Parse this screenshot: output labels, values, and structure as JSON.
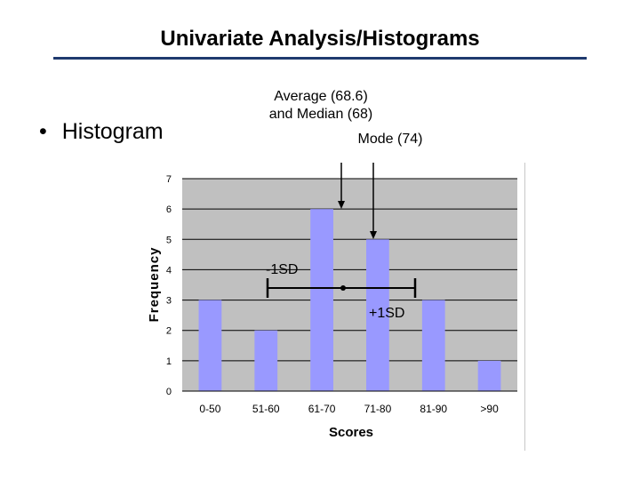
{
  "slide": {
    "title": "Univariate Analysis/Histograms",
    "bullet_symbol": "•",
    "bullet_text": "Histogram",
    "accent_color": "#1f3a6e"
  },
  "annotations": {
    "average_median_line1": "Average (68.6)",
    "average_median_line2": "and Median (68)",
    "mode": "Mode (74)",
    "minus_sd": "-1SD",
    "plus_sd": "+1SD"
  },
  "chart_data": {
    "type": "bar",
    "categories": [
      "0-50",
      "51-60",
      "61-70",
      "71-80",
      "81-90",
      ">90"
    ],
    "values": [
      3,
      2,
      6,
      5,
      3,
      1
    ],
    "xlabel": "Scores",
    "ylabel": "Frequency",
    "ylim": [
      0,
      7
    ],
    "yticks": [
      0,
      1,
      2,
      3,
      4,
      5,
      6,
      7
    ],
    "grid": true,
    "legend": "none",
    "bar_color": "#9999ff",
    "plot_background": "#c0c0c0"
  }
}
